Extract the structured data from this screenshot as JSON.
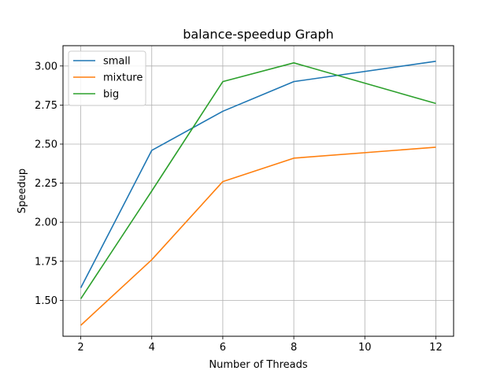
{
  "chart_data": {
    "type": "line",
    "title": "balance-speedup Graph",
    "xlabel": "Number of Threads",
    "ylabel": "Speedup",
    "x": [
      2,
      4,
      6,
      8,
      12
    ],
    "xticks": [
      "2",
      "4",
      "6",
      "8",
      "10",
      "12"
    ],
    "yticks": [
      "1.50",
      "1.75",
      "2.00",
      "2.25",
      "2.50",
      "2.75",
      "3.00"
    ],
    "xlim": [
      1.5,
      12.5
    ],
    "ylim": [
      1.27,
      3.13
    ],
    "grid": true,
    "legend_position": "top-left",
    "series": [
      {
        "name": "small",
        "color": "#1f77b4",
        "values": [
          1.58,
          2.46,
          2.71,
          2.9,
          3.03
        ]
      },
      {
        "name": "mixture",
        "color": "#ff7f0e",
        "values": [
          1.34,
          1.76,
          2.26,
          2.41,
          2.48
        ]
      },
      {
        "name": "big",
        "color": "#2ca02c",
        "values": [
          1.51,
          2.2,
          2.9,
          3.02,
          2.76
        ]
      }
    ]
  }
}
